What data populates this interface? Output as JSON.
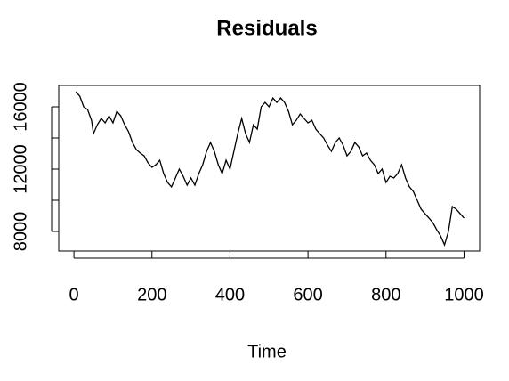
{
  "chart_data": {
    "type": "line",
    "title": "Residuals",
    "x_label": "Time",
    "x": [
      5,
      15,
      25,
      35,
      45,
      50,
      60,
      70,
      80,
      90,
      100,
      110,
      120,
      130,
      140,
      150,
      160,
      170,
      180,
      190,
      200,
      210,
      220,
      230,
      240,
      250,
      260,
      270,
      280,
      290,
      300,
      310,
      320,
      330,
      340,
      350,
      360,
      370,
      380,
      390,
      400,
      410,
      420,
      430,
      440,
      450,
      460,
      470,
      480,
      490,
      500,
      510,
      520,
      530,
      540,
      550,
      560,
      570,
      580,
      590,
      600,
      610,
      620,
      630,
      640,
      650,
      660,
      670,
      680,
      690,
      700,
      710,
      720,
      730,
      740,
      750,
      760,
      770,
      780,
      790,
      800,
      810,
      820,
      830,
      840,
      850,
      860,
      870,
      880,
      890,
      900,
      910,
      920,
      930,
      940,
      950,
      960,
      970,
      980,
      990,
      1000
    ],
    "series": [
      {
        "name": "Residuals",
        "color": "#000000",
        "values": [
          16970,
          16680,
          16000,
          15820,
          15140,
          14280,
          14850,
          15250,
          14970,
          15420,
          14970,
          15710,
          15420,
          14850,
          14400,
          13710,
          13250,
          13030,
          12850,
          12400,
          12110,
          12280,
          12570,
          11710,
          11140,
          10860,
          11430,
          12000,
          11540,
          10970,
          11430,
          10970,
          11710,
          12280,
          13140,
          13710,
          13140,
          12280,
          11710,
          12570,
          12000,
          13140,
          14280,
          15250,
          14280,
          13710,
          14850,
          14570,
          16000,
          16280,
          16000,
          16570,
          16280,
          16570,
          16280,
          15710,
          14850,
          15140,
          15540,
          15250,
          14970,
          15140,
          14570,
          14280,
          14000,
          13540,
          13140,
          13710,
          14000,
          13540,
          12850,
          13140,
          13710,
          13430,
          12850,
          13030,
          12570,
          12280,
          11710,
          12000,
          11140,
          11540,
          11430,
          11710,
          12280,
          11430,
          10860,
          10570,
          10000,
          9430,
          9140,
          8860,
          8570,
          8110,
          7710,
          7140,
          8000,
          9600,
          9430,
          9140,
          8860
        ]
      }
    ],
    "xlim": [
      -39,
      1040
    ],
    "xticks": [
      0,
      200,
      400,
      600,
      800,
      1000
    ],
    "ylim": [
      6743,
      17371
    ],
    "yticks": [
      8000,
      10000,
      12000,
      14000,
      16000
    ],
    "grid": false
  }
}
